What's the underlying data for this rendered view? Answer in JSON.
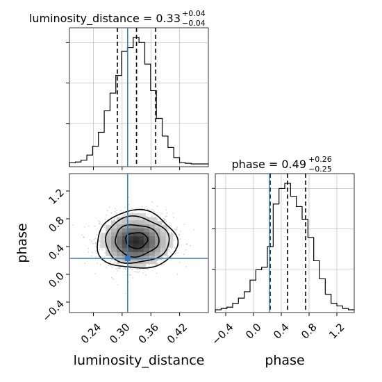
{
  "colors": {
    "truth": "#3b7ab8",
    "hist": "#000000",
    "grid": "#b0b0b0",
    "quantile": "#000000",
    "samples": "#9a9a9a"
  },
  "titles": {
    "luminosity": {
      "main": "luminosity_distance = 0.33",
      "sup": "+0.04",
      "sub": "−0.04"
    },
    "phase": {
      "main": "phase = 0.49",
      "sup": "+0.26",
      "sub": "−0.25"
    }
  },
  "axis_labels": {
    "x_left": "luminosity_distance",
    "x_right": "phase",
    "y_left": "phase"
  },
  "ticks": {
    "lum": {
      "values": [
        0.24,
        0.3,
        0.36,
        0.42
      ],
      "labels": [
        "0.24",
        "0.30",
        "0.36",
        "0.42"
      ]
    },
    "phase": {
      "values": [
        -0.4,
        0.0,
        0.4,
        0.8,
        1.2
      ],
      "labels": [
        "−0.4",
        "0.0",
        "0.4",
        "0.8",
        "1.2"
      ]
    }
  },
  "chart_data": [
    {
      "type": "histogram",
      "panel": "luminosity_distance marginal",
      "xlim": [
        0.19,
        0.48
      ],
      "bin_edges": [
        0.19,
        0.2021,
        0.2142,
        0.2263,
        0.2384,
        0.2505,
        0.2626,
        0.2747,
        0.2868,
        0.2989,
        0.311,
        0.3231,
        0.3352,
        0.3473,
        0.3594,
        0.3715,
        0.3836,
        0.3957,
        0.4078,
        0.4199,
        0.432,
        0.4441,
        0.4562,
        0.4683,
        0.48
      ],
      "counts": [
        0.01,
        0.015,
        0.03,
        0.07,
        0.14,
        0.25,
        0.42,
        0.56,
        0.7,
        0.89,
        0.92,
        1.0,
        0.96,
        0.79,
        0.58,
        0.36,
        0.22,
        0.13,
        0.05,
        0.01,
        0.005,
        0,
        0,
        0
      ],
      "quantiles": [
        0.29,
        0.33,
        0.37
      ],
      "truth": 0.3115
    },
    {
      "type": "histogram",
      "panel": "phase marginal",
      "xlim": [
        -0.55,
        1.45
      ],
      "bin_edges": [
        -0.55,
        -0.4667,
        -0.3833,
        -0.3,
        -0.2167,
        -0.1333,
        -0.05,
        0.0333,
        0.1167,
        0.2,
        0.2833,
        0.3667,
        0.45,
        0.5333,
        0.6167,
        0.7,
        0.7833,
        0.8667,
        0.95,
        1.0333,
        1.1167,
        1.2,
        1.2833,
        1.3667,
        1.45
      ],
      "counts": [
        0.0,
        0.01,
        0.02,
        0.05,
        0.09,
        0.14,
        0.23,
        0.31,
        0.33,
        0.49,
        0.82,
        0.94,
        0.98,
        0.88,
        0.8,
        0.7,
        0.56,
        0.38,
        0.24,
        0.12,
        0.05,
        0.03,
        0.01,
        0.0
      ],
      "quantiles": [
        0.24,
        0.49,
        0.75
      ],
      "truth": 0.23
    },
    {
      "type": "heatmap",
      "panel": "2D posterior (luminosity_distance vs phase)",
      "xlim": [
        0.19,
        0.48
      ],
      "ylim": [
        -0.55,
        1.45
      ],
      "center": [
        0.33,
        0.49
      ],
      "sigma": [
        0.038,
        0.19
      ],
      "contour_levels_sigma": [
        0.6,
        1.2,
        1.75,
        2.2
      ],
      "truth": [
        0.3115,
        0.23
      ]
    }
  ]
}
